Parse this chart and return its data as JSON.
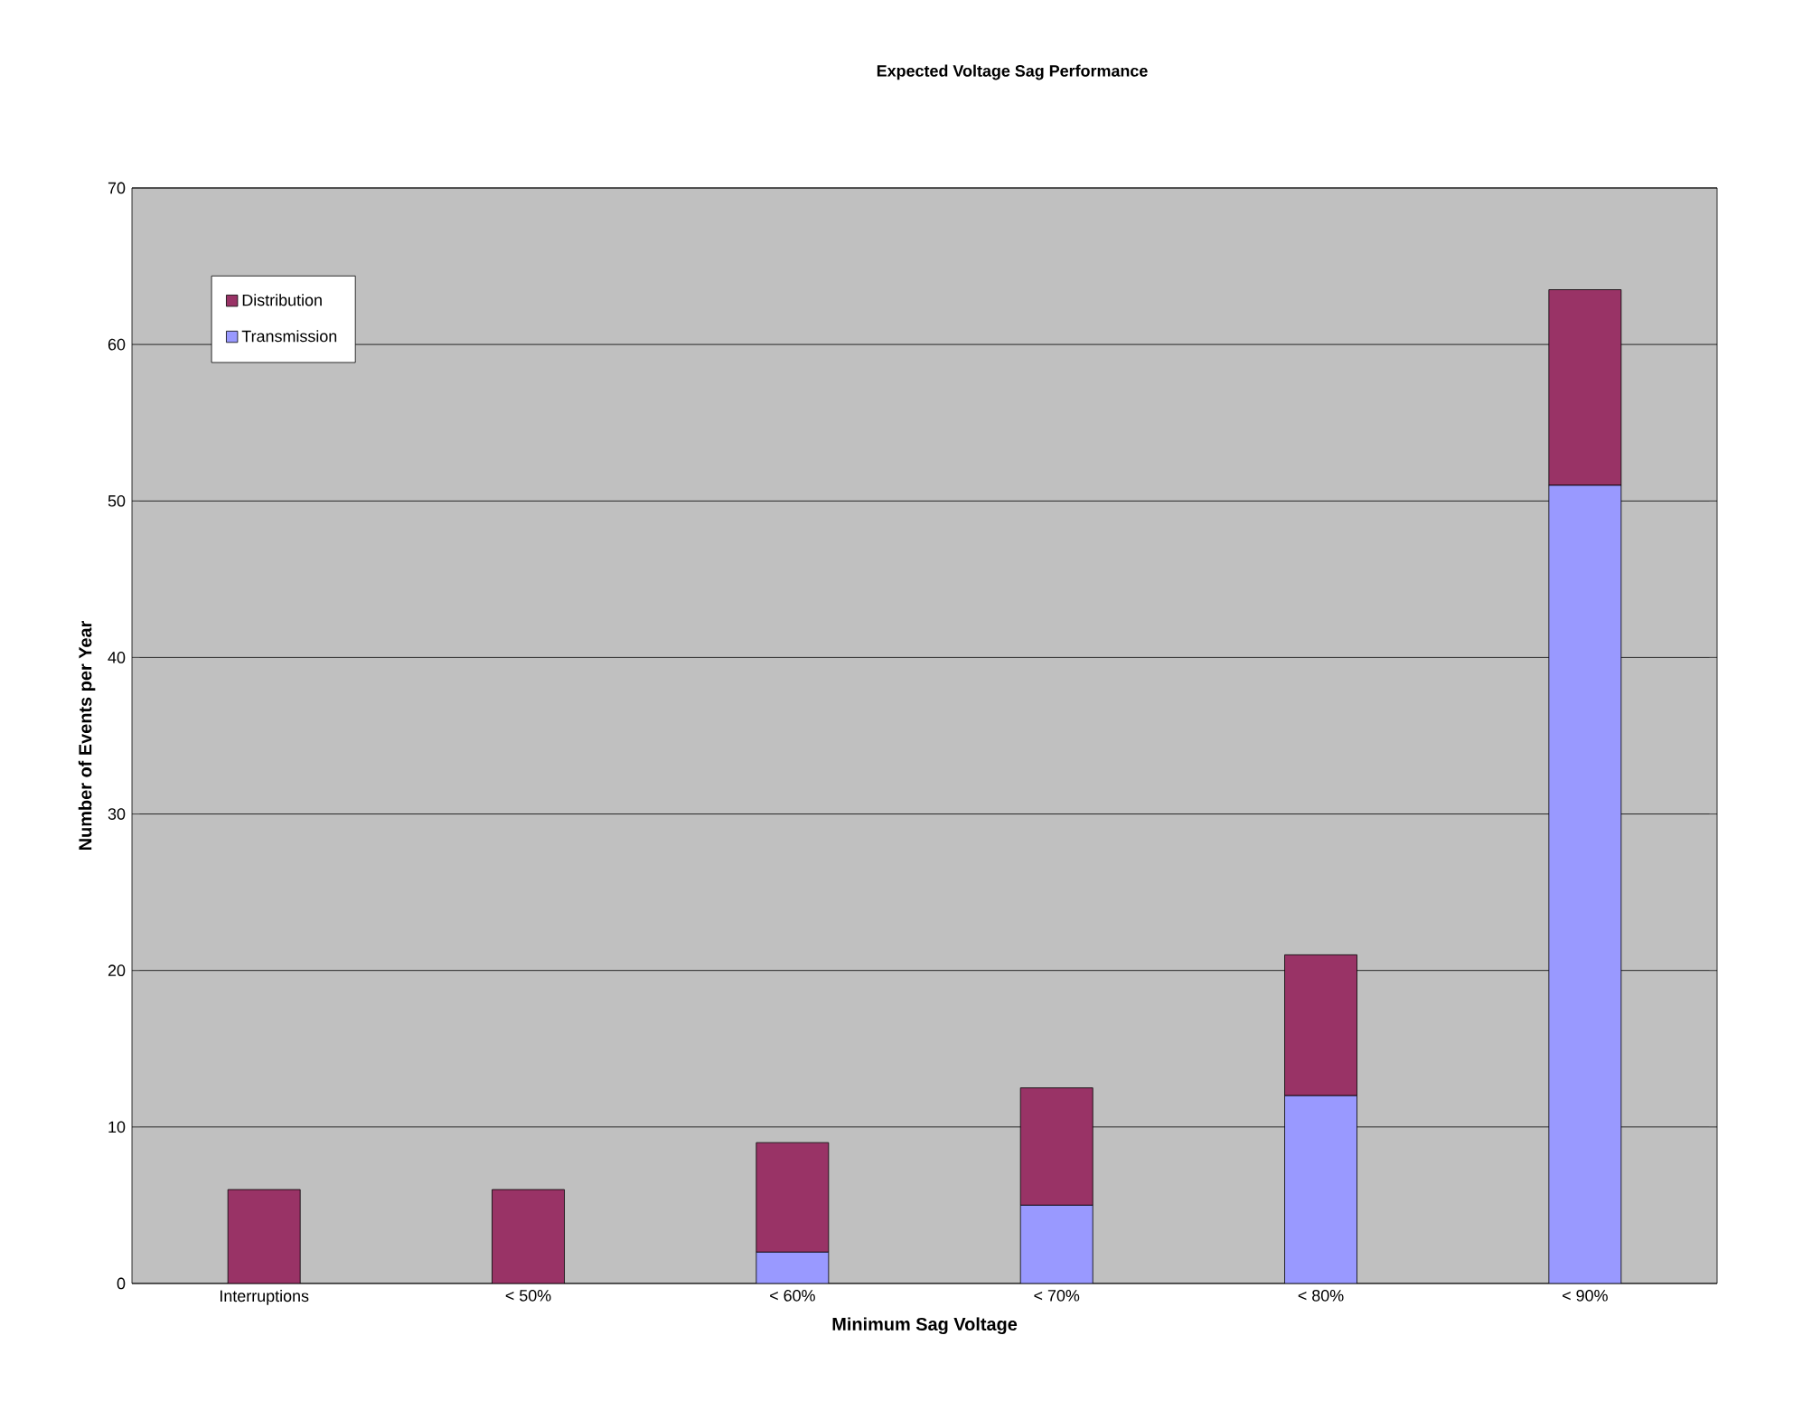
{
  "chart_data": {
    "type": "bar",
    "title": "Expected Voltage Sag Performance",
    "xlabel": "Minimum Sag Voltage",
    "ylabel": "Number of Events per Year",
    "categories": [
      "Interruptions",
      "< 50%",
      "< 60%",
      "< 70%",
      "< 80%",
      "< 90%"
    ],
    "series": [
      {
        "name": "Transmission",
        "color": "#9999ff",
        "values": [
          0,
          0,
          2,
          5,
          12,
          51
        ]
      },
      {
        "name": "Distribution",
        "color": "#993366",
        "values": [
          6,
          6,
          7,
          7.5,
          9,
          12.5
        ]
      }
    ],
    "stacked": true,
    "ylim": [
      0,
      70
    ],
    "yticks": [
      0,
      10,
      20,
      30,
      40,
      50,
      60,
      70
    ],
    "grid": "y",
    "legend": "top left"
  }
}
